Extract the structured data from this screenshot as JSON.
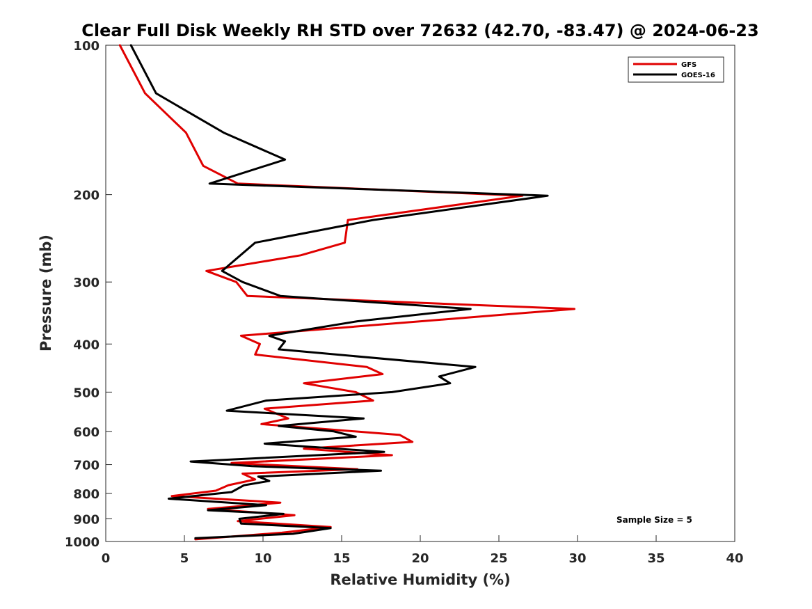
{
  "chart_data": {
    "type": "line",
    "title": "Clear Full Disk Weekly RH STD over 72632 (42.70, -83.47) @ 2024-06-23",
    "xlabel": "Relative Humidity (%)",
    "ylabel": "Pressure (mb)",
    "xlim": [
      0,
      40
    ],
    "ylim": [
      100,
      1000
    ],
    "y_scale": "log",
    "y_reversed": true,
    "x_ticks": [
      0,
      5,
      10,
      15,
      20,
      25,
      30,
      35,
      40
    ],
    "x_tick_labels": [
      "0",
      "5",
      "10",
      "15",
      "20",
      "25",
      "30",
      "35",
      "40"
    ],
    "y_ticks": [
      100,
      200,
      300,
      400,
      500,
      600,
      700,
      800,
      900,
      1000
    ],
    "y_tick_labels": [
      "100",
      "200",
      "300",
      "400",
      "500",
      "600",
      "700",
      "800",
      "900",
      "1000"
    ],
    "grid": false,
    "legend_position": "top-right",
    "annotation": "Sample Size = 5",
    "series": [
      {
        "name": "GFS",
        "color": "#e00000",
        "points": [
          [
            0.9,
            100
          ],
          [
            2.5,
            125
          ],
          [
            5.1,
            150
          ],
          [
            6.2,
            175
          ],
          [
            8.4,
            190
          ],
          [
            26.5,
            201
          ],
          [
            15.4,
            225
          ],
          [
            15.2,
            250
          ],
          [
            12.4,
            265
          ],
          [
            6.4,
            285
          ],
          [
            8.3,
            300
          ],
          [
            9.0,
            320
          ],
          [
            29.8,
            340
          ],
          [
            8.6,
            385
          ],
          [
            9.8,
            400
          ],
          [
            9.5,
            420
          ],
          [
            16.6,
            445
          ],
          [
            17.6,
            460
          ],
          [
            12.6,
            480
          ],
          [
            15.9,
            500
          ],
          [
            17.0,
            520
          ],
          [
            10.1,
            540
          ],
          [
            11.6,
            565
          ],
          [
            9.9,
            580
          ],
          [
            18.7,
            610
          ],
          [
            19.5,
            630
          ],
          [
            12.6,
            650
          ],
          [
            18.2,
            670
          ],
          [
            8.0,
            695
          ],
          [
            16.0,
            715
          ],
          [
            8.7,
            730
          ],
          [
            9.5,
            750
          ],
          [
            7.8,
            770
          ],
          [
            7.0,
            790
          ],
          [
            4.2,
            810
          ],
          [
            11.1,
            835
          ],
          [
            6.5,
            860
          ],
          [
            12.0,
            885
          ],
          [
            8.4,
            910
          ],
          [
            14.3,
            935
          ],
          [
            11.2,
            960
          ],
          [
            5.7,
            990
          ]
        ]
      },
      {
        "name": "GOES-16",
        "color": "#000000",
        "points": [
          [
            1.6,
            100
          ],
          [
            3.2,
            125
          ],
          [
            7.5,
            150
          ],
          [
            11.4,
            170
          ],
          [
            6.6,
            190
          ],
          [
            28.1,
            201
          ],
          [
            17.0,
            225
          ],
          [
            9.5,
            250
          ],
          [
            7.4,
            285
          ],
          [
            8.7,
            300
          ],
          [
            11.1,
            320
          ],
          [
            23.2,
            340
          ],
          [
            16.0,
            360
          ],
          [
            10.4,
            385
          ],
          [
            11.4,
            395
          ],
          [
            11.0,
            410
          ],
          [
            23.5,
            445
          ],
          [
            21.2,
            465
          ],
          [
            21.9,
            480
          ],
          [
            18.2,
            500
          ],
          [
            10.2,
            520
          ],
          [
            7.7,
            545
          ],
          [
            16.4,
            565
          ],
          [
            11.0,
            585
          ],
          [
            14.5,
            600
          ],
          [
            15.9,
            615
          ],
          [
            10.1,
            635
          ],
          [
            17.7,
            660
          ],
          [
            5.4,
            690
          ],
          [
            9.3,
            705
          ],
          [
            17.5,
            720
          ],
          [
            9.7,
            740
          ],
          [
            10.4,
            755
          ],
          [
            8.8,
            770
          ],
          [
            8.0,
            795
          ],
          [
            4.0,
            820
          ],
          [
            10.2,
            845
          ],
          [
            6.5,
            865
          ],
          [
            11.3,
            880
          ],
          [
            8.5,
            900
          ],
          [
            8.6,
            920
          ],
          [
            14.3,
            940
          ],
          [
            11.9,
            965
          ],
          [
            5.7,
            985
          ]
        ]
      }
    ]
  }
}
